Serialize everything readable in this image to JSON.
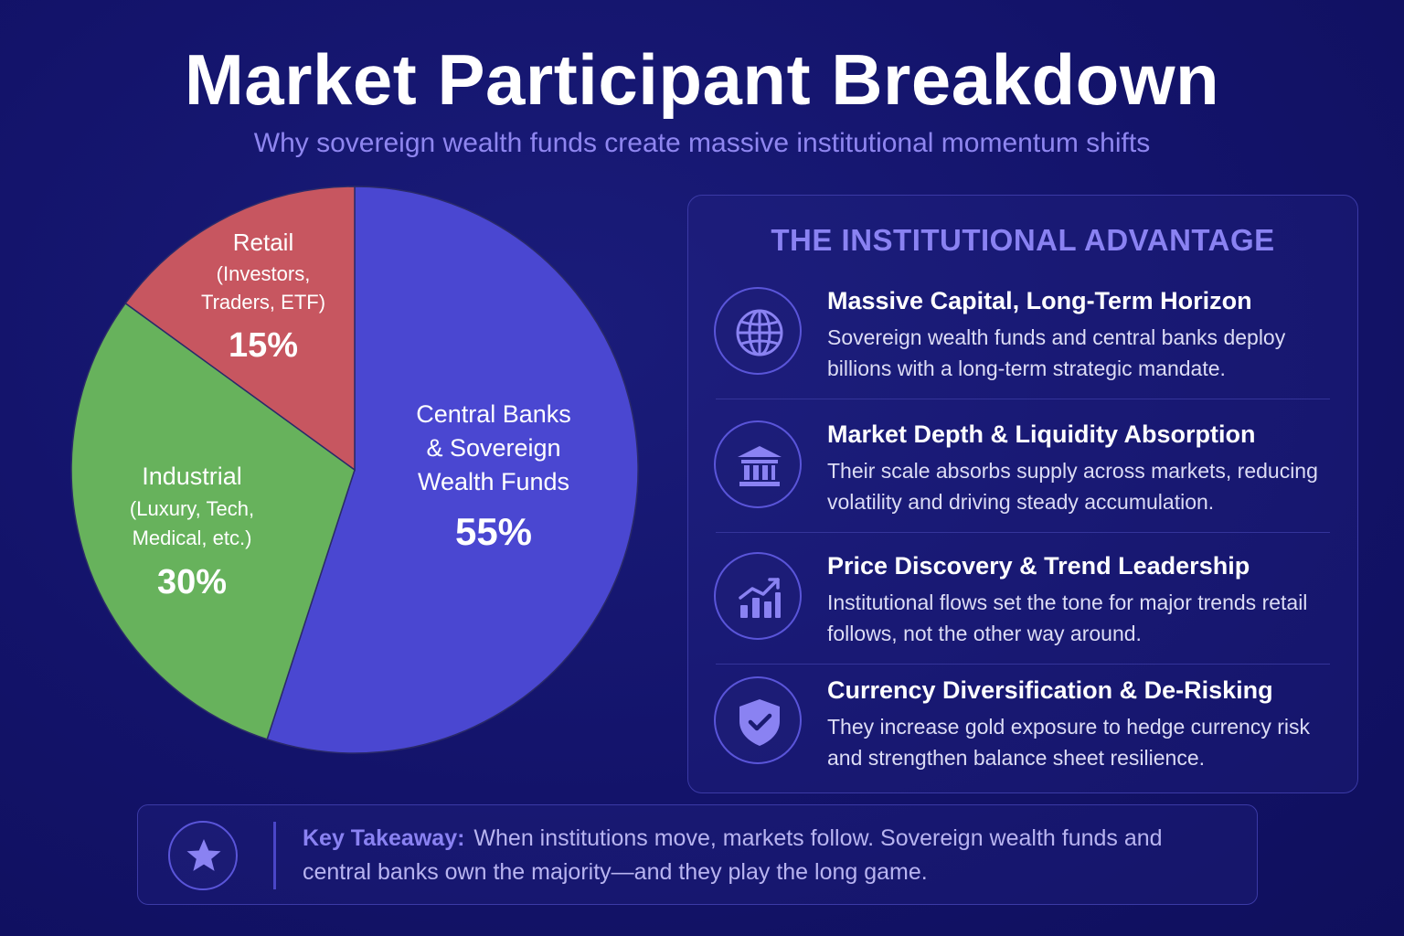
{
  "header": {
    "title": "Market Participant Breakdown",
    "subtitle": "Why sovereign wealth funds create massive institutional momentum shifts"
  },
  "chart_data": {
    "type": "pie",
    "title": "",
    "slices": [
      {
        "label": "Central Banks & Sovereign Wealth Funds",
        "label_lines": [
          "Central Banks",
          "& Sovereign",
          "Wealth Funds"
        ],
        "sublabel_lines": [],
        "value": 55,
        "value_text": "55%",
        "color": "#4a47d1"
      },
      {
        "label": "Industrial",
        "label_lines": [
          "Industrial"
        ],
        "sublabel_lines": [
          "(Luxury, Tech,",
          "Medical, etc.)"
        ],
        "value": 30,
        "value_text": "30%",
        "color": "#67b25c"
      },
      {
        "label": "Retail",
        "label_lines": [
          "Retail"
        ],
        "sublabel_lines": [
          "(Investors,",
          "Traders, ETF)"
        ],
        "value": 15,
        "value_text": "15%",
        "color": "#c75660"
      }
    ]
  },
  "panel": {
    "heading": "THE INSTITUTIONAL ADVANTAGE",
    "items": [
      {
        "icon": "globe-icon",
        "title": "Massive Capital, Long-Term Horizon",
        "desc": "Sovereign wealth funds and central banks deploy billions with a long-term strategic mandate."
      },
      {
        "icon": "bank-icon",
        "title": "Market Depth & Liquidity Absorption",
        "desc": "Their scale absorbs supply across markets, reducing volatility and driving steady accumulation."
      },
      {
        "icon": "trend-chart-icon",
        "title": "Price Discovery & Trend Leadership",
        "desc": "Institutional flows set the tone for major trends retail follows, not the other way around."
      },
      {
        "icon": "shield-check-icon",
        "title": "Currency Diversification & De-Risking",
        "desc": "They increase gold exposure to hedge currency risk and strengthen balance sheet resilience."
      }
    ]
  },
  "takeaway": {
    "label": "Key Takeaway:",
    "text": "When institutions move, markets follow. Sovereign wealth funds and central banks own the majority—and they play the long game.",
    "icon": "star-icon"
  }
}
